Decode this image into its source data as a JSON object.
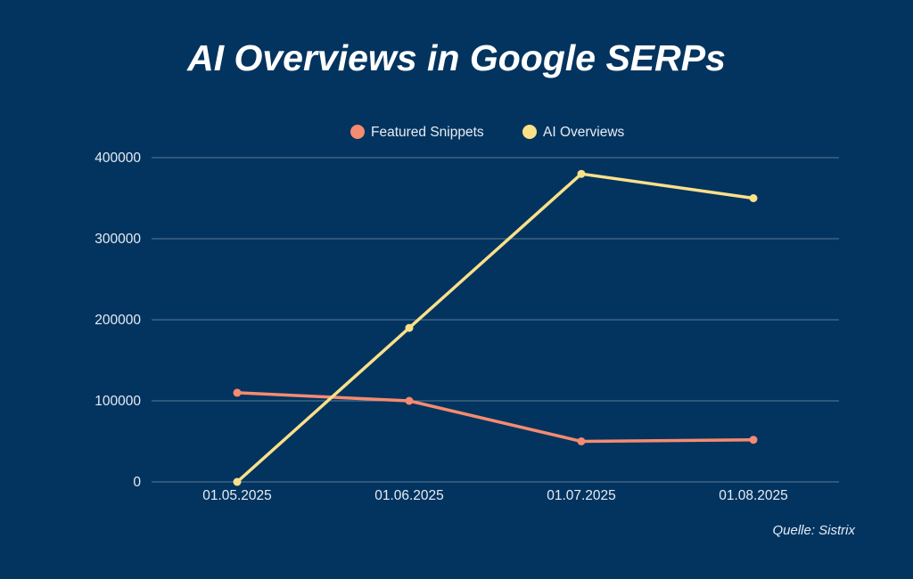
{
  "chart_data": {
    "type": "line",
    "title": "AI Overviews in Google SERPs",
    "categories": [
      "01.05.2025",
      "01.06.2025",
      "01.07.2025",
      "01.08.2025"
    ],
    "series": [
      {
        "name": "Featured Snippets",
        "color": "#f58b70",
        "values": [
          110000,
          100000,
          50000,
          52000
        ]
      },
      {
        "name": "AI Overviews",
        "color": "#fbe08a",
        "values": [
          0,
          190000,
          380000,
          350000
        ]
      }
    ],
    "yticks": [
      "400000",
      "300000",
      "200000",
      "100000",
      "0"
    ],
    "ylim": [
      0,
      400000
    ],
    "grid": true,
    "legend": "top-center",
    "xlabel": "",
    "ylabel": ""
  },
  "source": "Quelle: Sistrix"
}
